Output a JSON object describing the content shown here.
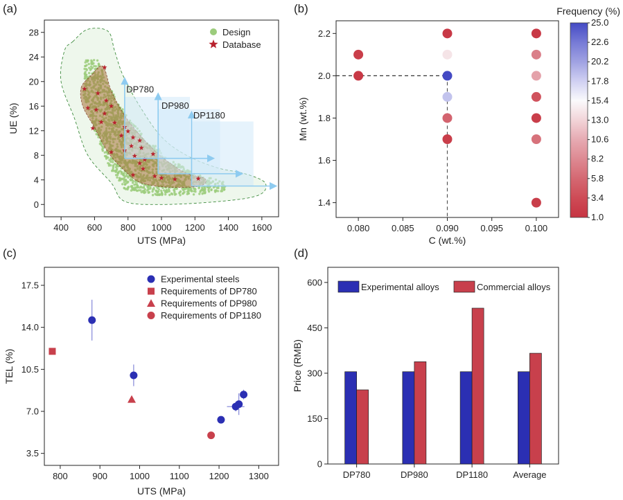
{
  "panels": {
    "a": "(a)",
    "b": "(b)",
    "c": "(c)",
    "d": "(d)"
  },
  "colors": {
    "design": "#9ccc7c",
    "database": "#b8222e",
    "blue": "#2b2fb3",
    "red": "#c8404c",
    "arrow": "#8ecbf0",
    "box": "#d2eaf9"
  },
  "chart_data": [
    {
      "id": "a",
      "type": "scatter",
      "xlabel": "UTS (MPa)",
      "ylabel": "UE (%)",
      "xlim": [
        300,
        1700
      ],
      "ylim": [
        -2,
        30
      ],
      "xticks": [
        400,
        600,
        800,
        1000,
        1200,
        1400,
        1600
      ],
      "yticks": [
        0,
        4,
        8,
        12,
        16,
        20,
        24,
        28
      ],
      "legend": [
        {
          "label": "Design",
          "marker": "circle",
          "color": "#9ccc7c"
        },
        {
          "label": "Database",
          "marker": "star",
          "color": "#b8222e"
        }
      ],
      "annotations": [
        {
          "text": "DP780",
          "x": 790,
          "y": 18.2
        },
        {
          "text": "DP980",
          "x": 1000,
          "y": 15.6
        },
        {
          "text": "DP1180",
          "x": 1190,
          "y": 14.0
        }
      ],
      "requirement_arrows": [
        {
          "x0": 780,
          "y0": 7.5,
          "x_end": 1310,
          "y_top": 20.5
        },
        {
          "x0": 980,
          "y0": 5.0,
          "x_end": 1480,
          "y_top": 18.0
        },
        {
          "x0": 1180,
          "y0": 3.0,
          "x_end": 1700,
          "y_top": 15.0
        }
      ],
      "requirement_boxes": [
        {
          "x0": 780,
          "y0": 7.5,
          "x1": 1170,
          "y1": 17.5
        },
        {
          "x0": 980,
          "y0": 5.0,
          "x1": 1350,
          "y1": 15.5
        },
        {
          "x0": 1180,
          "y0": 3.0,
          "x1": 1550,
          "y1": 13.5
        }
      ],
      "design_envelope": [
        [
          470,
          26.5
        ],
        [
          560,
          28.5
        ],
        [
          680,
          28.2
        ],
        [
          720,
          25
        ],
        [
          770,
          21
        ],
        [
          870,
          16
        ],
        [
          1000,
          11
        ],
        [
          1150,
          8
        ],
        [
          1330,
          6
        ],
        [
          1500,
          5
        ],
        [
          1620,
          3.5
        ],
        [
          1580,
          1.5
        ],
        [
          1350,
          0.5
        ],
        [
          1000,
          0
        ],
        [
          780,
          0.5
        ],
        [
          700,
          3.5
        ],
        [
          560,
          8
        ],
        [
          480,
          14
        ],
        [
          400,
          20
        ],
        [
          420,
          25
        ]
      ],
      "design_core": [
        [
          540,
          23.5
        ],
        [
          620,
          23.5
        ],
        [
          690,
          19
        ],
        [
          790,
          14.5
        ],
        [
          900,
          11
        ],
        [
          1050,
          7.5
        ],
        [
          1200,
          5
        ],
        [
          1400,
          3.5
        ],
        [
          1380,
          2
        ],
        [
          1150,
          1.5
        ],
        [
          950,
          1.5
        ],
        [
          780,
          2.5
        ],
        [
          690,
          6
        ],
        [
          600,
          12
        ],
        [
          530,
          18
        ]
      ],
      "database_region": [
        [
          520,
          19
        ],
        [
          580,
          21
        ],
        [
          650,
          22.5
        ],
        [
          700,
          18.5
        ],
        [
          780,
          14.5
        ],
        [
          880,
          11
        ],
        [
          1000,
          7.8
        ],
        [
          1140,
          5.2
        ],
        [
          1260,
          4.2
        ],
        [
          1230,
          3
        ],
        [
          1050,
          2.8
        ],
        [
          880,
          3.5
        ],
        [
          780,
          5.5
        ],
        [
          680,
          8.5
        ],
        [
          600,
          12.5
        ],
        [
          530,
          16
        ]
      ],
      "database_points": [
        [
          660,
          22.3
        ],
        [
          540,
          18.8
        ],
        [
          620,
          18.1
        ],
        [
          670,
          16.9
        ],
        [
          700,
          16.0
        ],
        [
          560,
          15.7
        ],
        [
          610,
          15.4
        ],
        [
          660,
          14.8
        ],
        [
          640,
          13.4
        ],
        [
          590,
          12.4
        ],
        [
          720,
          13.3
        ],
        [
          780,
          12.6
        ],
        [
          800,
          11.9
        ],
        [
          760,
          11.2
        ],
        [
          830,
          10.9
        ],
        [
          870,
          10.4
        ],
        [
          820,
          9.5
        ],
        [
          880,
          9.2
        ],
        [
          780,
          8.8
        ],
        [
          700,
          8.5
        ],
        [
          840,
          7.9
        ],
        [
          900,
          7.3
        ],
        [
          950,
          8.2
        ],
        [
          870,
          6.7
        ],
        [
          890,
          5.8
        ],
        [
          830,
          4.8
        ],
        [
          960,
          4.6
        ],
        [
          1000,
          4.3
        ],
        [
          1080,
          4.1
        ],
        [
          1220,
          4.2
        ]
      ]
    },
    {
      "id": "b",
      "type": "scatter",
      "xlabel": "C (wt.%)",
      "ylabel": "Mn (wt.%)",
      "xlim": [
        0.0775,
        0.1025
      ],
      "ylim": [
        1.33,
        2.26
      ],
      "xticks": [
        0.08,
        0.085,
        0.09,
        0.095,
        0.1
      ],
      "xtick_labels": [
        "0.080",
        "0.085",
        "0.090",
        "0.095",
        "0.100"
      ],
      "yticks": [
        1.4,
        1.6,
        1.8,
        2.0,
        2.2
      ],
      "ytick_labels": [
        "1.4",
        "1.6",
        "1.8",
        "2.0",
        "2.2"
      ],
      "colorbar": {
        "title": "Frequency (%)",
        "ticks": [
          "25.0",
          "22.6",
          "20.2",
          "17.8",
          "15.4",
          "13.0",
          "10.6",
          "8.2",
          "5.8",
          "3.4",
          "1.0"
        ]
      },
      "guide_point": {
        "x": 0.09,
        "y": 2.0
      },
      "points": [
        {
          "x": 0.08,
          "y": 2.1,
          "freq": 2.0
        },
        {
          "x": 0.08,
          "y": 2.0,
          "freq": 1.5
        },
        {
          "x": 0.09,
          "y": 2.2,
          "freq": 1.5
        },
        {
          "x": 0.09,
          "y": 2.1,
          "freq": 14.0
        },
        {
          "x": 0.09,
          "y": 2.0,
          "freq": 25.0
        },
        {
          "x": 0.09,
          "y": 1.9,
          "freq": 18.5
        },
        {
          "x": 0.09,
          "y": 1.8,
          "freq": 5.5
        },
        {
          "x": 0.09,
          "y": 1.7,
          "freq": 2.0
        },
        {
          "x": 0.1,
          "y": 2.2,
          "freq": 1.5
        },
        {
          "x": 0.1,
          "y": 2.1,
          "freq": 7.5
        },
        {
          "x": 0.1,
          "y": 2.0,
          "freq": 10.0
        },
        {
          "x": 0.1,
          "y": 1.9,
          "freq": 4.0
        },
        {
          "x": 0.1,
          "y": 1.8,
          "freq": 2.0
        },
        {
          "x": 0.1,
          "y": 1.7,
          "freq": 6.5
        },
        {
          "x": 0.1,
          "y": 1.4,
          "freq": 2.0
        }
      ]
    },
    {
      "id": "c",
      "type": "scatter",
      "xlabel": "UTS (MPa)",
      "ylabel": "TEL (%)",
      "xlim": [
        760,
        1350
      ],
      "ylim": [
        2.5,
        19
      ],
      "xticks": [
        800,
        900,
        1000,
        1100,
        1200,
        1300
      ],
      "yticks": [
        3.5,
        7.0,
        10.5,
        14.0,
        17.5
      ],
      "ytick_labels": [
        "3.5",
        "7.0",
        "10.5",
        "14.0",
        "17.5"
      ],
      "legend": [
        {
          "label": "Experimental steels",
          "marker": "circle",
          "color": "#2b2fb3"
        },
        {
          "label": "Requirements of DP780",
          "marker": "square",
          "color": "#c8404c"
        },
        {
          "label": "Requirements of DP980",
          "marker": "triangle",
          "color": "#c8404c"
        },
        {
          "label": "Requirements of DP1180",
          "marker": "circle",
          "color": "#c8404c"
        }
      ],
      "experimental": [
        {
          "x": 880,
          "y": 14.6,
          "yerr": 1.7,
          "xerr": 0
        },
        {
          "x": 985,
          "y": 10.0,
          "yerr": 0.9,
          "xerr": 8
        },
        {
          "x": 1205,
          "y": 6.3,
          "yerr": 0,
          "xerr": 0
        },
        {
          "x": 1242,
          "y": 7.4,
          "yerr": 0.4,
          "xerr": 22
        },
        {
          "x": 1250,
          "y": 7.6,
          "yerr": 0.9,
          "xerr": 0
        },
        {
          "x": 1262,
          "y": 8.4,
          "yerr": 0.4,
          "xerr": 0
        }
      ],
      "requirements": [
        {
          "grade": "DP780",
          "x": 780,
          "y": 12.0,
          "marker": "square"
        },
        {
          "grade": "DP980",
          "x": 980,
          "y": 8.0,
          "marker": "triangle"
        },
        {
          "grade": "DP1180",
          "x": 1180,
          "y": 5.0,
          "marker": "circle"
        }
      ]
    },
    {
      "id": "d",
      "type": "bar",
      "xlabel": "",
      "ylabel": "Price (RMB)",
      "ylim": [
        0,
        650
      ],
      "yticks": [
        0,
        150,
        300,
        450,
        600
      ],
      "categories": [
        "DP780",
        "DP980",
        "DP1180",
        "Average"
      ],
      "series": [
        {
          "name": "Experimental alloys",
          "values": [
            305,
            305,
            305,
            305
          ],
          "color": "#2b2fb3"
        },
        {
          "name": "Commercial alloys",
          "values": [
            245,
            338,
            515,
            366
          ],
          "color": "#c8404c"
        }
      ]
    }
  ]
}
